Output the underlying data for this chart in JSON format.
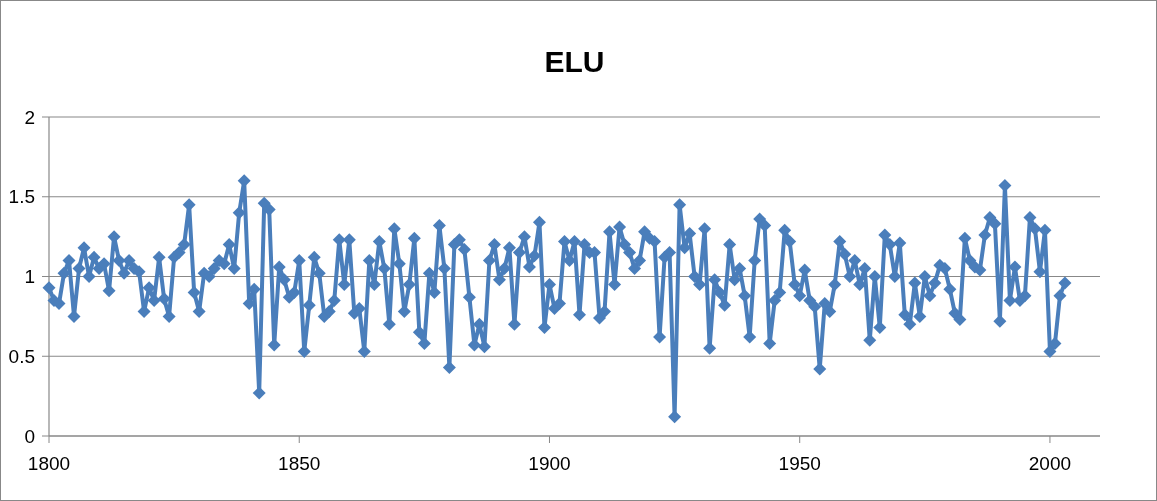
{
  "chart_data": {
    "type": "line",
    "title": "ELU",
    "x": [
      1800,
      1801,
      1802,
      1803,
      1804,
      1805,
      1806,
      1807,
      1808,
      1809,
      1810,
      1811,
      1812,
      1813,
      1814,
      1815,
      1816,
      1817,
      1818,
      1819,
      1820,
      1821,
      1822,
      1823,
      1824,
      1825,
      1826,
      1827,
      1828,
      1829,
      1830,
      1831,
      1832,
      1833,
      1834,
      1835,
      1836,
      1837,
      1838,
      1839,
      1840,
      1841,
      1842,
      1843,
      1844,
      1845,
      1846,
      1847,
      1848,
      1849,
      1850,
      1851,
      1852,
      1853,
      1854,
      1855,
      1856,
      1857,
      1858,
      1859,
      1860,
      1861,
      1862,
      1863,
      1864,
      1865,
      1866,
      1867,
      1868,
      1869,
      1870,
      1871,
      1872,
      1873,
      1874,
      1875,
      1876,
      1877,
      1878,
      1879,
      1880,
      1881,
      1882,
      1883,
      1884,
      1885,
      1886,
      1887,
      1888,
      1889,
      1890,
      1891,
      1892,
      1893,
      1894,
      1895,
      1896,
      1897,
      1898,
      1899,
      1900,
      1901,
      1902,
      1903,
      1904,
      1905,
      1906,
      1907,
      1908,
      1909,
      1910,
      1911,
      1912,
      1913,
      1914,
      1915,
      1916,
      1917,
      1918,
      1919,
      1920,
      1921,
      1922,
      1923,
      1924,
      1925,
      1926,
      1927,
      1928,
      1929,
      1930,
      1931,
      1932,
      1933,
      1934,
      1935,
      1936,
      1937,
      1938,
      1939,
      1940,
      1941,
      1942,
      1943,
      1944,
      1945,
      1946,
      1947,
      1948,
      1949,
      1950,
      1951,
      1952,
      1953,
      1954,
      1955,
      1956,
      1957,
      1958,
      1959,
      1960,
      1961,
      1962,
      1963,
      1964,
      1965,
      1966,
      1967,
      1968,
      1969,
      1970,
      1971,
      1972,
      1973,
      1974,
      1975,
      1976,
      1977,
      1978,
      1979,
      1980,
      1981,
      1982,
      1983,
      1984,
      1985,
      1986,
      1987,
      1988,
      1989,
      1990,
      1991,
      1992,
      1993,
      1994,
      1995,
      1996,
      1997,
      1998,
      1999,
      2000,
      2001,
      2002,
      2003
    ],
    "series": [
      {
        "color": "#4a7ebb",
        "values": [
          0.93,
          0.85,
          0.83,
          1.02,
          1.1,
          0.75,
          1.05,
          1.18,
          1.0,
          1.12,
          1.05,
          1.08,
          0.91,
          1.25,
          1.1,
          1.02,
          1.1,
          1.05,
          1.03,
          0.78,
          0.93,
          0.85,
          1.12,
          0.86,
          0.75,
          1.12,
          1.15,
          1.2,
          1.45,
          0.9,
          0.78,
          1.02,
          1.0,
          1.05,
          1.1,
          1.08,
          1.2,
          1.05,
          1.4,
          1.6,
          0.83,
          0.92,
          0.27,
          1.46,
          1.42,
          0.57,
          1.06,
          0.98,
          0.87,
          0.9,
          1.1,
          0.53,
          0.82,
          1.12,
          1.02,
          0.75,
          0.78,
          0.85,
          1.23,
          0.95,
          1.23,
          0.77,
          0.8,
          0.53,
          1.1,
          0.95,
          1.22,
          1.05,
          0.7,
          1.3,
          1.08,
          0.78,
          0.95,
          1.24,
          0.65,
          0.58,
          1.02,
          0.9,
          1.32,
          1.05,
          0.43,
          1.2,
          1.23,
          1.17,
          0.87,
          0.57,
          0.7,
          0.56,
          1.1,
          1.2,
          0.98,
          1.05,
          1.18,
          0.7,
          1.15,
          1.25,
          1.06,
          1.13,
          1.34,
          0.68,
          0.95,
          0.8,
          0.83,
          1.22,
          1.1,
          1.22,
          0.76,
          1.2,
          1.15,
          1.15,
          0.74,
          0.78,
          1.28,
          0.95,
          1.31,
          1.2,
          1.15,
          1.05,
          1.1,
          1.28,
          1.24,
          1.22,
          0.62,
          1.12,
          1.15,
          0.12,
          1.45,
          1.18,
          1.27,
          1.0,
          0.95,
          1.3,
          0.55,
          0.98,
          0.9,
          0.82,
          1.2,
          0.98,
          1.05,
          0.88,
          0.62,
          1.1,
          1.36,
          1.32,
          0.58,
          0.85,
          0.9,
          1.29,
          1.22,
          0.95,
          0.88,
          1.04,
          0.85,
          0.81,
          0.42,
          0.83,
          0.78,
          0.95,
          1.22,
          1.14,
          1.0,
          1.1,
          0.95,
          1.05,
          0.6,
          1.0,
          0.68,
          1.26,
          1.2,
          1.0,
          1.21,
          0.76,
          0.7,
          0.96,
          0.75,
          1.0,
          0.88,
          0.96,
          1.07,
          1.05,
          0.92,
          0.77,
          0.73,
          1.24,
          1.1,
          1.06,
          1.04,
          1.26,
          1.37,
          1.33,
          0.72,
          1.57,
          0.85,
          1.06,
          0.85,
          0.88,
          1.37,
          1.3,
          1.03,
          1.29,
          0.53,
          0.58,
          0.88,
          0.96
        ]
      }
    ],
    "xlim": [
      1800,
      2010
    ],
    "xticks": [
      1800,
      1850,
      1900,
      1950,
      2000
    ],
    "ylim": [
      0,
      2
    ],
    "yticks": [
      0,
      0.5,
      1,
      1.5,
      2
    ],
    "grid": "y",
    "marker": "diamond",
    "line_style": "solid"
  }
}
